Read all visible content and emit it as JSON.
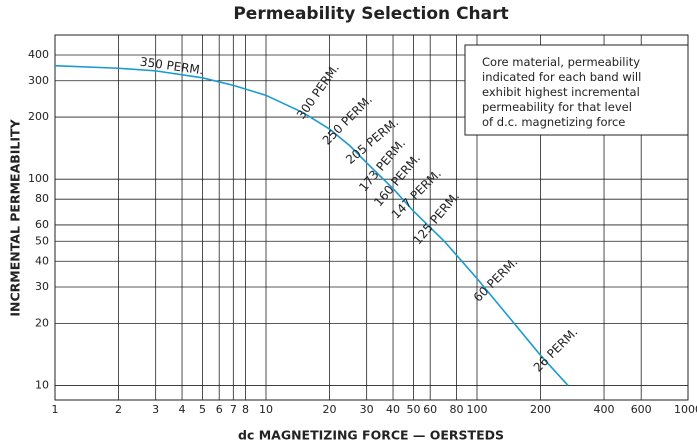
{
  "chart_data": {
    "type": "line",
    "title": "Permeability Selection Chart",
    "x_label": "dc MAGNETIZING FORCE — OERSTEDS",
    "y_label": "INCRMENTAL PERMEABILITY",
    "x": [
      1,
      2,
      3,
      5,
      7,
      10,
      15,
      20,
      25,
      30,
      40,
      50,
      70,
      100,
      150,
      200,
      270
    ],
    "series": [
      {
        "name": "Incremental permeability",
        "color": "#1a9bd0",
        "values": [
          355,
          345,
          335,
          310,
          285,
          255,
          210,
          175,
          145,
          120,
          90,
          70,
          50,
          33,
          20,
          14,
          10
        ]
      }
    ],
    "log_x": true,
    "log_y": true,
    "grid": true,
    "xlim": [
      1,
      1000
    ],
    "ylim": [
      8.5,
      500
    ],
    "xticks": [
      1,
      2,
      3,
      4,
      5,
      6,
      7,
      8,
      10,
      20,
      30,
      40,
      50,
      60,
      80,
      100,
      200,
      400,
      600,
      1000
    ],
    "yticks": [
      10,
      20,
      30,
      40,
      50,
      60,
      80,
      100,
      200,
      300,
      400
    ],
    "annotations": [
      "350 PERM.",
      "300 PERM.",
      "250 PERM.",
      "205 PERM.",
      "173 PERM.",
      "160 PERM.",
      "147 PERM.",
      "125 PERM.",
      "60 PERM.",
      "26 PERM."
    ],
    "note": [
      "Core material, permeability",
      "indicated for each band will",
      "exhibit highest incremental",
      "permeability for that level",
      "of d.c. magnetizing force"
    ]
  }
}
